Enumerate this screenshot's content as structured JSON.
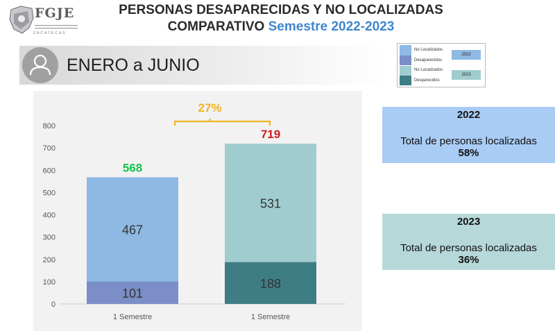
{
  "logo": {
    "text": "FGJE",
    "subtitle": "ZACATECAS"
  },
  "header": {
    "title_line1": "PERSONAS DESAPARECIDAS Y NO LOCALIZADAS",
    "title_line2_prefix": "COMPARATIVO",
    "title_line2_accent": "Semestre 2022-2023"
  },
  "section": {
    "label": "ENERO a JUNIO",
    "icon": "person-icon"
  },
  "legend": {
    "groups": [
      {
        "year": "2022",
        "items": [
          {
            "label": "No Localizados",
            "color": "#8db9e3"
          },
          {
            "label": "Desaparecidos",
            "color": "#7b8ec8"
          }
        ]
      },
      {
        "year": "2023",
        "items": [
          {
            "label": "No Localizados",
            "color": "#a0cccf"
          },
          {
            "label": "Desparecidos",
            "color": "#3f7d84"
          }
        ]
      }
    ]
  },
  "chart_data": {
    "type": "bar",
    "stacked": true,
    "categories": [
      "1 Semestre",
      "1 Semestre"
    ],
    "series": [
      {
        "name": "Desaparecidos",
        "values": [
          101,
          188
        ],
        "colors": [
          "#7b8ec8",
          "#3f7d84"
        ]
      },
      {
        "name": "No Localizados",
        "values": [
          467,
          531
        ],
        "colors": [
          "#8db9e3",
          "#a0cccf"
        ]
      }
    ],
    "totals": [
      568,
      719
    ],
    "total_colors": [
      "#17c24f",
      "#d01d1d"
    ],
    "change_label": "27%",
    "change_color": "#f0b323",
    "yticks": [
      0,
      100,
      200,
      300,
      400,
      500,
      600,
      700,
      800
    ],
    "ylim": [
      0,
      800
    ],
    "grid": false
  },
  "cards": [
    {
      "year": "2022",
      "label": "Total de personas localizadas",
      "percent": "58%",
      "color": "#a9ccf4"
    },
    {
      "year": "2023",
      "label": "Total de personas localizadas",
      "percent": "36%",
      "color": "#b7d8d9"
    }
  ]
}
